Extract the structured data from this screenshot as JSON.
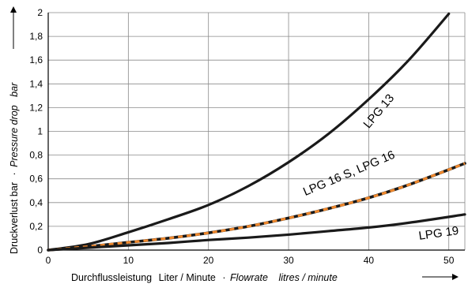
{
  "chart_data": {
    "type": "line",
    "xlabel": {
      "de": "Durchflussleistung",
      "de_unit": "Liter / Minute",
      "sep": "·",
      "en": "Flowrate",
      "en_unit": "litres / minute"
    },
    "ylabel": {
      "de": "Druckverlust bar",
      "sep": "·",
      "en": "Pressure drop",
      "en_unit": "bar"
    },
    "xlim": [
      0,
      52
    ],
    "ylim": [
      0,
      2
    ],
    "x_ticks": [
      0,
      10,
      20,
      30,
      40,
      50
    ],
    "y_ticks": [
      0,
      0.2,
      0.4,
      0.6,
      0.8,
      1.0,
      1.2,
      1.4,
      1.6,
      1.8,
      2.0
    ],
    "y_tick_labels": [
      "0",
      "0,2",
      "0,4",
      "0,6",
      "0,8",
      "1",
      "1,2",
      "1,4",
      "1,6",
      "1,8",
      "2"
    ],
    "grid": true,
    "series": [
      {
        "name": "LPG 13",
        "color": "#1a1a1a",
        "style": "solid",
        "x": [
          0,
          5,
          10,
          15,
          20,
          25,
          30,
          35,
          40,
          45,
          50
        ],
        "y": [
          0,
          0.05,
          0.15,
          0.26,
          0.38,
          0.54,
          0.74,
          0.98,
          1.27,
          1.6,
          1.99
        ]
      },
      {
        "name": "LPG 16 S, LPG 16",
        "color": "#1a1a1a",
        "dash_color": "#f0892e",
        "style": "dashed",
        "x": [
          0,
          5,
          10,
          15,
          20,
          25,
          30,
          35,
          40,
          45,
          52
        ],
        "y": [
          0,
          0.03,
          0.065,
          0.1,
          0.145,
          0.2,
          0.27,
          0.35,
          0.44,
          0.55,
          0.73
        ]
      },
      {
        "name": "LPG 19",
        "color": "#1a1a1a",
        "style": "solid",
        "x": [
          0,
          5,
          10,
          15,
          20,
          25,
          30,
          35,
          40,
          45,
          52
        ],
        "y": [
          0,
          0.02,
          0.04,
          0.06,
          0.085,
          0.105,
          0.13,
          0.16,
          0.19,
          0.23,
          0.3
        ]
      }
    ]
  }
}
